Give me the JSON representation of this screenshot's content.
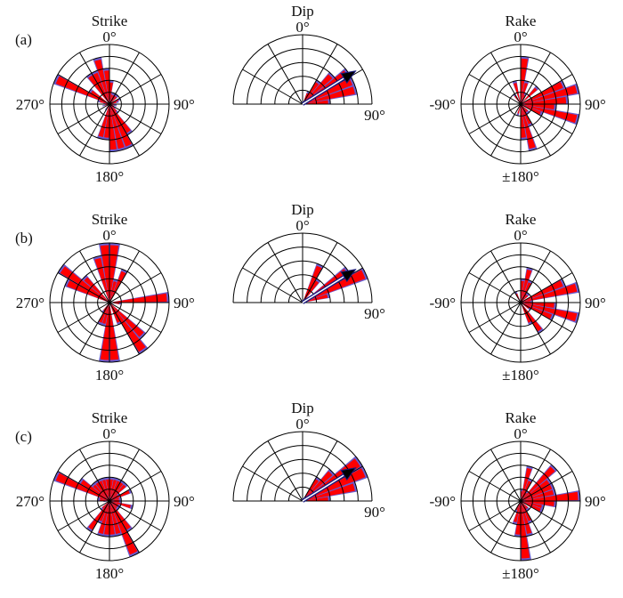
{
  "colors": {
    "fill": "#ff0000",
    "edge": "#6a5acd",
    "grid": "#000000",
    "arrow": "#000000",
    "arrow_edge": "#1a1a80"
  },
  "chart_data": [
    {
      "id": "a",
      "panel_label": "(a)",
      "subplots": [
        {
          "type": "polar-rose",
          "title": "Strike",
          "direction_labels": [
            "0°",
            "90°",
            "180°",
            "270°"
          ],
          "bin_width_deg": 10,
          "rmax": 5,
          "bins": [
            [
              5,
              2
            ],
            [
              15,
              1
            ],
            [
              25,
              1
            ],
            [
              35,
              1
            ],
            [
              45,
              1
            ],
            [
              65,
              1
            ],
            [
              75,
              0.8
            ],
            [
              95,
              0.6
            ],
            [
              105,
              0.6
            ],
            [
              125,
              0.6
            ],
            [
              135,
              1
            ],
            [
              145,
              3
            ],
            [
              155,
              4
            ],
            [
              165,
              4
            ],
            [
              175,
              4
            ],
            [
              185,
              3
            ],
            [
              195,
              3
            ],
            [
              215,
              0.6
            ],
            [
              255,
              0.6
            ],
            [
              275,
              0.5
            ],
            [
              285,
              1
            ],
            [
              295,
              5
            ],
            [
              305,
              2
            ],
            [
              325,
              3
            ],
            [
              335,
              3
            ],
            [
              345,
              4
            ],
            [
              355,
              3
            ]
          ]
        },
        {
          "type": "polar-rose-half",
          "title": "Dip",
          "direction_labels": [
            "0°",
            "90°"
          ],
          "bin_width_deg": 10,
          "rmax": 5,
          "bins": [
            [
              25,
              1
            ],
            [
              35,
              2
            ],
            [
              45,
              3
            ],
            [
              55,
              4
            ],
            [
              65,
              4
            ],
            [
              75,
              4
            ],
            [
              85,
              2
            ]
          ],
          "mean_arrow_deg": 58
        },
        {
          "type": "polar-rose",
          "title": "Rake",
          "direction_labels": [
            "0°",
            "90°",
            "±180°",
            "-90°"
          ],
          "bin_width_deg": 10,
          "rmax": 5,
          "bins": [
            [
              5,
              4
            ],
            [
              15,
              2
            ],
            [
              25,
              1
            ],
            [
              45,
              2
            ],
            [
              65,
              4
            ],
            [
              75,
              5
            ],
            [
              85,
              4
            ],
            [
              95,
              3
            ],
            [
              105,
              5
            ],
            [
              115,
              2
            ],
            [
              135,
              1
            ],
            [
              145,
              1
            ],
            [
              155,
              2
            ],
            [
              165,
              4
            ],
            [
              175,
              3
            ],
            [
              195,
              1
            ],
            [
              325,
              1
            ],
            [
              345,
              2
            ]
          ]
        }
      ]
    },
    {
      "id": "b",
      "panel_label": "(b)",
      "subplots": [
        {
          "type": "polar-rose",
          "title": "Strike",
          "direction_labels": [
            "0°",
            "90°",
            "180°",
            "270°"
          ],
          "bin_width_deg": 10,
          "rmax": 5,
          "bins": [
            [
              5,
              5
            ],
            [
              15,
              2
            ],
            [
              25,
              3
            ],
            [
              85,
              5
            ],
            [
              95,
              1
            ],
            [
              135,
              4
            ],
            [
              145,
              5
            ],
            [
              155,
              2
            ],
            [
              175,
              5
            ],
            [
              185,
              5
            ],
            [
              195,
              2
            ],
            [
              205,
              2
            ],
            [
              215,
              1
            ],
            [
              295,
              4
            ],
            [
              305,
              5
            ],
            [
              315,
              3
            ],
            [
              345,
              4
            ],
            [
              355,
              5
            ]
          ]
        },
        {
          "type": "polar-rose-half",
          "title": "Dip",
          "direction_labels": [
            "0°",
            "90°"
          ],
          "bin_width_deg": 10,
          "rmax": 5,
          "bins": [
            [
              25,
              3
            ],
            [
              35,
              2
            ],
            [
              55,
              4
            ],
            [
              65,
              5
            ],
            [
              75,
              2
            ]
          ],
          "mean_arrow_deg": 58
        },
        {
          "type": "polar-rose",
          "title": "Rake",
          "direction_labels": [
            "0°",
            "90°",
            "±180°",
            "-90°"
          ],
          "bin_width_deg": 10,
          "rmax": 5,
          "bins": [
            [
              5,
              2
            ],
            [
              15,
              3
            ],
            [
              25,
              2
            ],
            [
              35,
              1
            ],
            [
              45,
              1
            ],
            [
              65,
              4
            ],
            [
              75,
              5
            ],
            [
              85,
              1
            ],
            [
              95,
              3
            ],
            [
              105,
              5
            ],
            [
              115,
              3
            ],
            [
              125,
              1
            ],
            [
              145,
              3
            ],
            [
              155,
              2
            ],
            [
              335,
              1
            ]
          ]
        }
      ]
    },
    {
      "id": "c",
      "panel_label": "(c)",
      "subplots": [
        {
          "type": "polar-rose",
          "title": "Strike",
          "direction_labels": [
            "0°",
            "90°",
            "180°",
            "270°"
          ],
          "bin_width_deg": 10,
          "rmax": 5,
          "bins": [
            [
              5,
              2
            ],
            [
              15,
              2
            ],
            [
              25,
              2
            ],
            [
              35,
              2
            ],
            [
              45,
              2
            ],
            [
              55,
              1
            ],
            [
              65,
              2
            ],
            [
              75,
              1
            ],
            [
              85,
              1
            ],
            [
              95,
              1
            ],
            [
              105,
              2
            ],
            [
              115,
              1
            ],
            [
              125,
              1
            ],
            [
              135,
              1
            ],
            [
              145,
              3
            ],
            [
              155,
              5
            ],
            [
              165,
              3
            ],
            [
              175,
              3
            ],
            [
              185,
              3
            ],
            [
              195,
              3
            ],
            [
              205,
              2
            ],
            [
              215,
              3
            ],
            [
              225,
              1
            ],
            [
              265,
              0.5
            ],
            [
              275,
              1
            ],
            [
              285,
              1
            ],
            [
              295,
              5
            ],
            [
              305,
              3
            ],
            [
              315,
              2
            ],
            [
              325,
              2
            ],
            [
              335,
              2
            ],
            [
              345,
              2
            ],
            [
              355,
              2
            ]
          ]
        },
        {
          "type": "polar-rose-half",
          "title": "Dip",
          "direction_labels": [
            "0°",
            "90°"
          ],
          "bin_width_deg": 10,
          "rmax": 5,
          "bins": [
            [
              35,
              2
            ],
            [
              45,
              3
            ],
            [
              55,
              5
            ],
            [
              65,
              5
            ],
            [
              75,
              4
            ],
            [
              85,
              2
            ]
          ],
          "mean_arrow_deg": 58
        },
        {
          "type": "polar-rose",
          "title": "Rake",
          "direction_labels": [
            "0°",
            "90°",
            "±180°",
            "-90°"
          ],
          "bin_width_deg": 10,
          "rmax": 5,
          "bins": [
            [
              5,
              1
            ],
            [
              15,
              3
            ],
            [
              25,
              2
            ],
            [
              35,
              1
            ],
            [
              45,
              4
            ],
            [
              55,
              3
            ],
            [
              65,
              3
            ],
            [
              75,
              3
            ],
            [
              85,
              5
            ],
            [
              95,
              3
            ],
            [
              105,
              2
            ],
            [
              115,
              2
            ],
            [
              135,
              1
            ],
            [
              145,
              1
            ],
            [
              155,
              2
            ],
            [
              165,
              3
            ],
            [
              175,
              5
            ],
            [
              185,
              3
            ],
            [
              195,
              2
            ],
            [
              205,
              1
            ]
          ]
        }
      ]
    }
  ]
}
